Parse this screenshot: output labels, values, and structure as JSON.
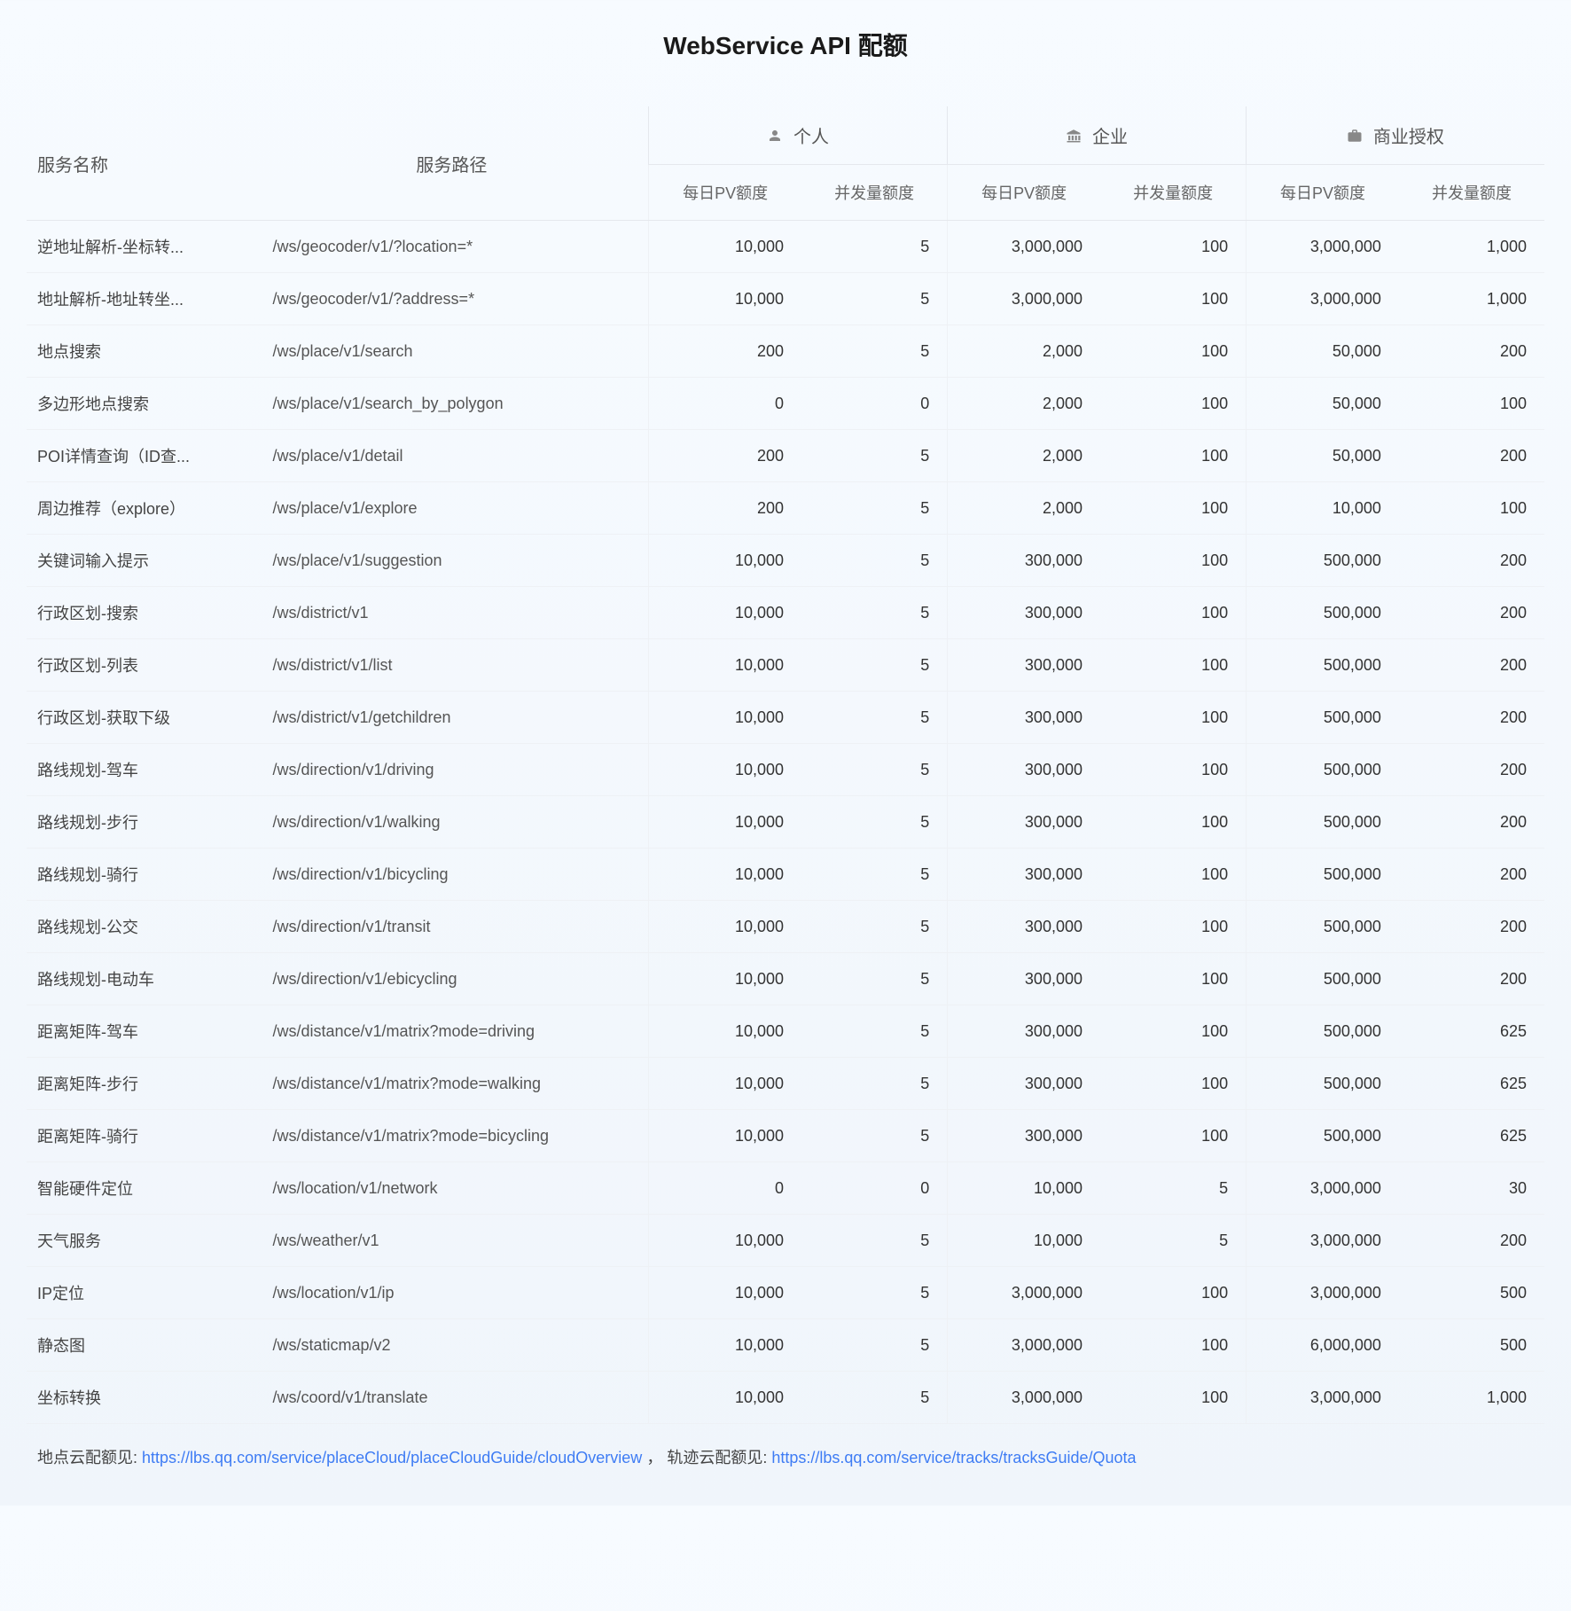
{
  "title": "WebService API 配额",
  "tableHeaders": {
    "serviceName": "服务名称",
    "servicePath": "服务路径",
    "groups": [
      {
        "label": "个人",
        "icon": "person-icon"
      },
      {
        "label": "企业",
        "icon": "building-icon"
      },
      {
        "label": "商业授权",
        "icon": "briefcase-icon"
      }
    ],
    "subColumns": [
      "每日PV额度",
      "并发量额度"
    ]
  },
  "rows": [
    {
      "name": "逆地址解析-坐标转...",
      "path": "/ws/geocoder/v1/?location=*",
      "cells": [
        "10,000",
        "5",
        "3,000,000",
        "100",
        "3,000,000",
        "1,000"
      ]
    },
    {
      "name": "地址解析-地址转坐...",
      "path": "/ws/geocoder/v1/?address=*",
      "cells": [
        "10,000",
        "5",
        "3,000,000",
        "100",
        "3,000,000",
        "1,000"
      ]
    },
    {
      "name": "地点搜索",
      "path": "/ws/place/v1/search",
      "cells": [
        "200",
        "5",
        "2,000",
        "100",
        "50,000",
        "200"
      ]
    },
    {
      "name": "多边形地点搜索",
      "path": "/ws/place/v1/search_by_polygon",
      "cells": [
        "0",
        "0",
        "2,000",
        "100",
        "50,000",
        "100"
      ]
    },
    {
      "name": "POI详情查询（ID查...",
      "path": "/ws/place/v1/detail",
      "cells": [
        "200",
        "5",
        "2,000",
        "100",
        "50,000",
        "200"
      ]
    },
    {
      "name": "周边推荐（explore）",
      "path": "/ws/place/v1/explore",
      "cells": [
        "200",
        "5",
        "2,000",
        "100",
        "10,000",
        "100"
      ]
    },
    {
      "name": "关键词输入提示",
      "path": "/ws/place/v1/suggestion",
      "cells": [
        "10,000",
        "5",
        "300,000",
        "100",
        "500,000",
        "200"
      ]
    },
    {
      "name": "行政区划-搜索",
      "path": "/ws/district/v1",
      "cells": [
        "10,000",
        "5",
        "300,000",
        "100",
        "500,000",
        "200"
      ]
    },
    {
      "name": "行政区划-列表",
      "path": "/ws/district/v1/list",
      "cells": [
        "10,000",
        "5",
        "300,000",
        "100",
        "500,000",
        "200"
      ]
    },
    {
      "name": "行政区划-获取下级",
      "path": "/ws/district/v1/getchildren",
      "cells": [
        "10,000",
        "5",
        "300,000",
        "100",
        "500,000",
        "200"
      ]
    },
    {
      "name": "路线规划-驾车",
      "path": "/ws/direction/v1/driving",
      "cells": [
        "10,000",
        "5",
        "300,000",
        "100",
        "500,000",
        "200"
      ]
    },
    {
      "name": "路线规划-步行",
      "path": "/ws/direction/v1/walking",
      "cells": [
        "10,000",
        "5",
        "300,000",
        "100",
        "500,000",
        "200"
      ]
    },
    {
      "name": "路线规划-骑行",
      "path": "/ws/direction/v1/bicycling",
      "cells": [
        "10,000",
        "5",
        "300,000",
        "100",
        "500,000",
        "200"
      ]
    },
    {
      "name": "路线规划-公交",
      "path": "/ws/direction/v1/transit",
      "cells": [
        "10,000",
        "5",
        "300,000",
        "100",
        "500,000",
        "200"
      ]
    },
    {
      "name": "路线规划-电动车",
      "path": "/ws/direction/v1/ebicycling",
      "cells": [
        "10,000",
        "5",
        "300,000",
        "100",
        "500,000",
        "200"
      ]
    },
    {
      "name": "距离矩阵-驾车",
      "path": "/ws/distance/v1/matrix?mode=driving",
      "cells": [
        "10,000",
        "5",
        "300,000",
        "100",
        "500,000",
        "625"
      ]
    },
    {
      "name": "距离矩阵-步行",
      "path": "/ws/distance/v1/matrix?mode=walking",
      "cells": [
        "10,000",
        "5",
        "300,000",
        "100",
        "500,000",
        "625"
      ]
    },
    {
      "name": "距离矩阵-骑行",
      "path": "/ws/distance/v1/matrix?mode=bicycling",
      "cells": [
        "10,000",
        "5",
        "300,000",
        "100",
        "500,000",
        "625"
      ]
    },
    {
      "name": "智能硬件定位",
      "path": "/ws/location/v1/network",
      "cells": [
        "0",
        "0",
        "10,000",
        "5",
        "3,000,000",
        "30"
      ]
    },
    {
      "name": "天气服务",
      "path": "/ws/weather/v1",
      "cells": [
        "10,000",
        "5",
        "10,000",
        "5",
        "3,000,000",
        "200"
      ]
    },
    {
      "name": "IP定位",
      "path": "/ws/location/v1/ip",
      "cells": [
        "10,000",
        "5",
        "3,000,000",
        "100",
        "3,000,000",
        "500"
      ]
    },
    {
      "name": "静态图",
      "path": "/ws/staticmap/v2",
      "cells": [
        "10,000",
        "5",
        "3,000,000",
        "100",
        "6,000,000",
        "500"
      ]
    },
    {
      "name": "坐标转换",
      "path": "/ws/coord/v1/translate",
      "cells": [
        "10,000",
        "5",
        "3,000,000",
        "100",
        "3,000,000",
        "1,000"
      ]
    }
  ],
  "footer": {
    "label1": "地点云配额见: ",
    "link1": "https://lbs.qq.com/service/placeCloud/placeCloudGuide/cloudOverview",
    "sep": " ，    ",
    "label2": "轨迹云配额见: ",
    "link2": "https://lbs.qq.com/service/tracks/tracksGuide/Quota"
  },
  "colors": {
    "link": "#3e7cf4",
    "iconFill": "#888888"
  }
}
